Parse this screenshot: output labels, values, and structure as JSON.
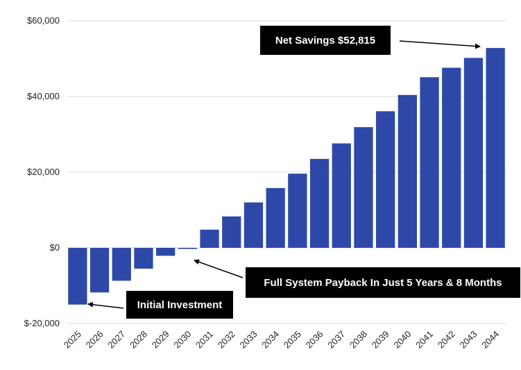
{
  "chart_data": {
    "type": "bar",
    "categories": [
      "2025",
      "2026",
      "2027",
      "2028",
      "2029",
      "2030",
      "2031",
      "2032",
      "2033",
      "2034",
      "2035",
      "2036",
      "2037",
      "2038",
      "2039",
      "2040",
      "2041",
      "2042",
      "2043",
      "2044"
    ],
    "values": [
      -15000,
      -11800,
      -8700,
      -5500,
      -2100,
      -300,
      4800,
      8300,
      12000,
      15800,
      19600,
      23500,
      27600,
      31900,
      36100,
      40400,
      45100,
      47600,
      50200,
      52815
    ],
    "ylim": [
      -20000,
      60000
    ],
    "yticks": [
      -20000,
      0,
      20000,
      40000,
      60000
    ],
    "ytick_labels": [
      "$-20,000",
      "$0",
      "$20,000",
      "$40,000",
      "$60,000"
    ],
    "grid": true,
    "bar_color": "#2e48a8",
    "title": "",
    "xlabel": "",
    "ylabel": "",
    "annotations": [
      {
        "id": "net",
        "text": "Net Savings $52,815",
        "target_category": "2044"
      },
      {
        "id": "payback",
        "text": "Full System Payback In Just 5 Years & 8 Months",
        "target_category": "2030"
      },
      {
        "id": "initial",
        "text": "Initial Investment",
        "target_category": "2025"
      }
    ]
  }
}
